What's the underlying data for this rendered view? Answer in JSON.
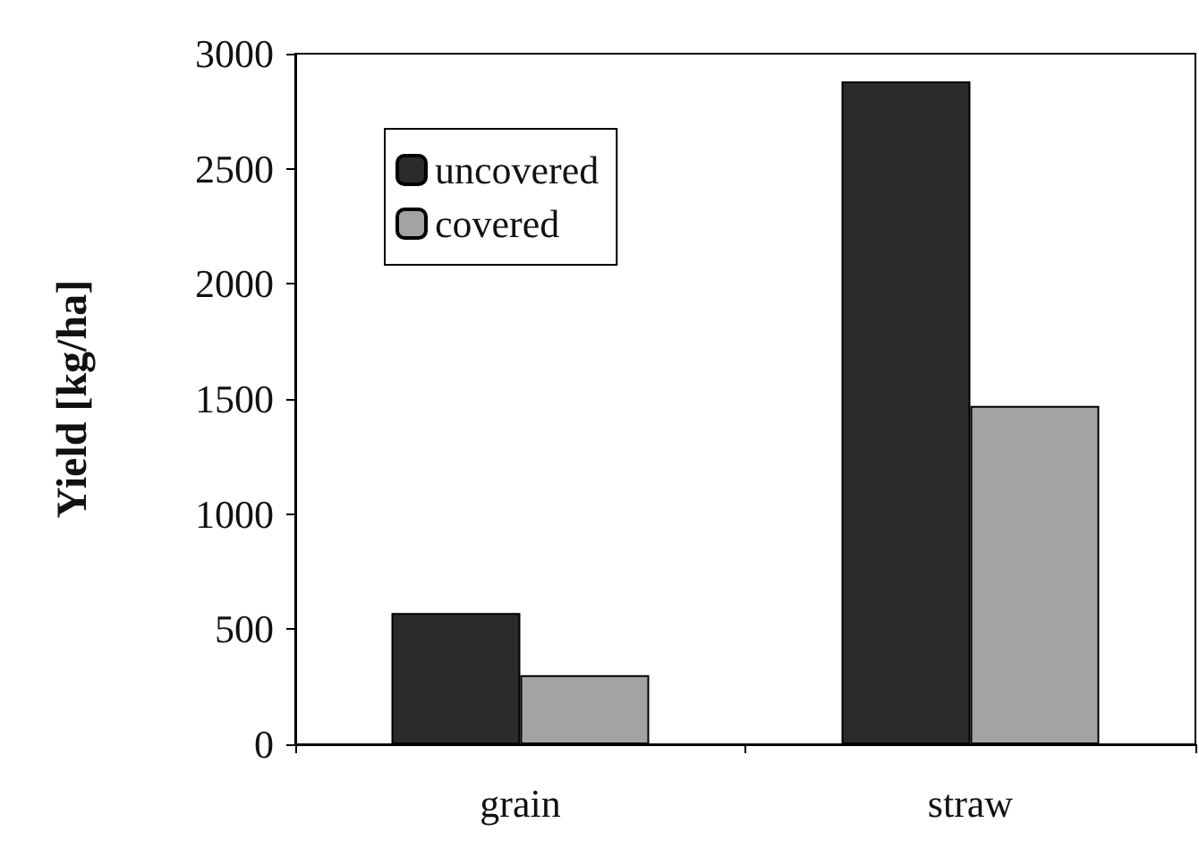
{
  "chart_data": {
    "type": "bar",
    "ylabel": "Yield [kg/ha]",
    "categories": [
      "grain",
      "straw"
    ],
    "series": [
      {
        "name": "uncovered",
        "color": "#2b2b2b",
        "values": [
          570,
          2880
        ]
      },
      {
        "name": "covered",
        "color": "#a3a3a3",
        "values": [
          300,
          1470
        ]
      }
    ],
    "ylim": [
      0,
      3000
    ],
    "yticks": [
      0,
      500,
      1000,
      1500,
      2000,
      2500,
      3000
    ],
    "grid": false,
    "legend": "top left"
  }
}
